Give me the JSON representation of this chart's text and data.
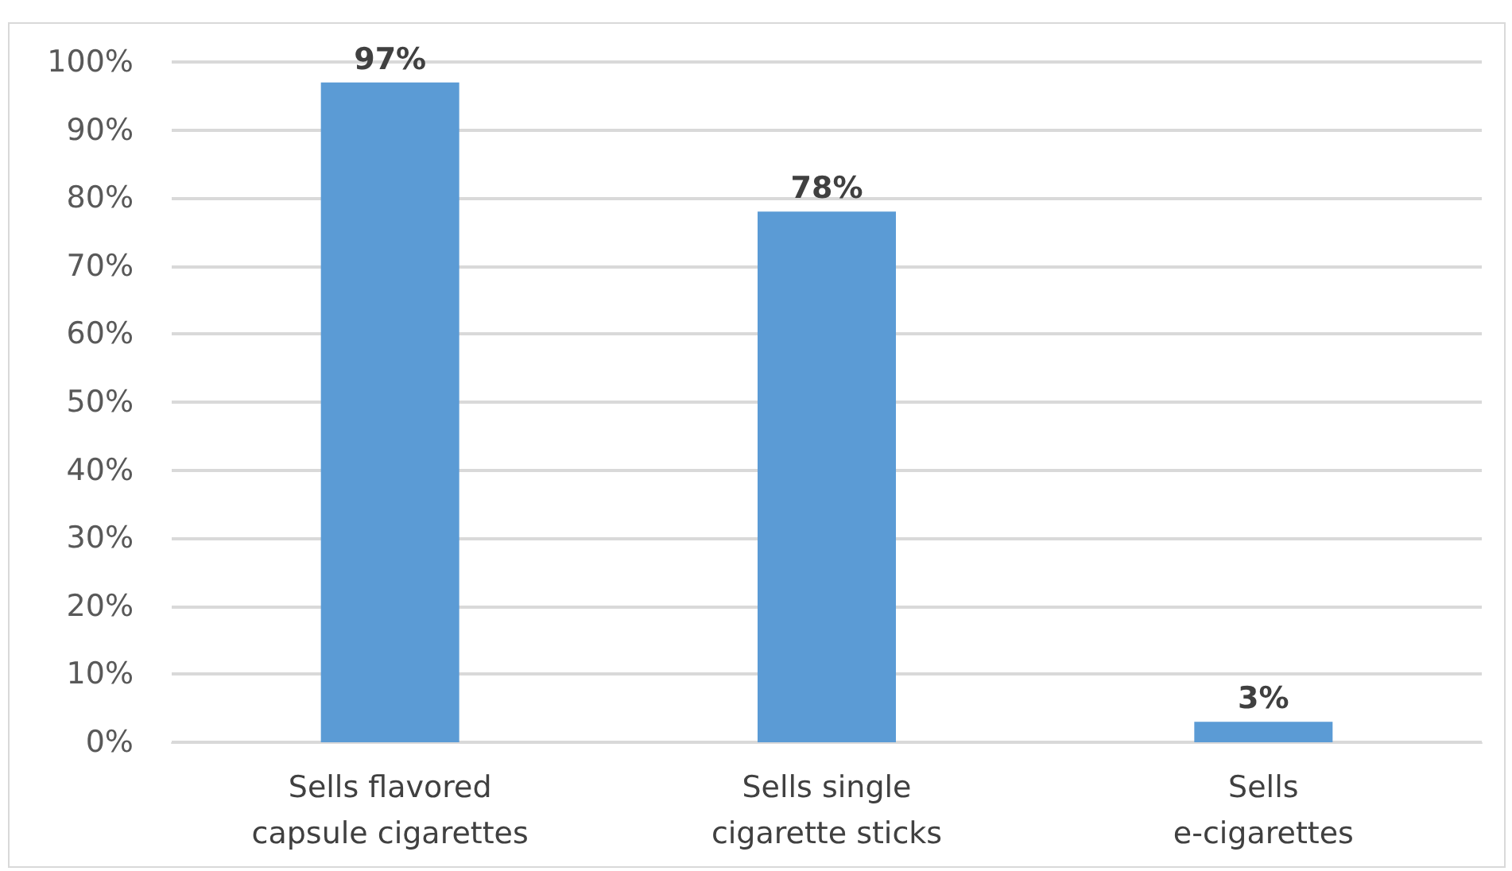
{
  "chart_data": {
    "type": "bar",
    "categories": [
      "Sells flavored\ncapsule cigarettes",
      "Sells single\ncigarette sticks",
      "Sells\ne-cigarettes"
    ],
    "values": [
      97,
      78,
      3
    ],
    "color": "#5b9bd5",
    "value_labels": [
      "97%",
      "78%",
      "3%"
    ],
    "ylim": [
      0,
      100
    ],
    "yticks": [
      {
        "value": 0,
        "label": "0%"
      },
      {
        "value": 10,
        "label": "10%"
      },
      {
        "value": 20,
        "label": "20%"
      },
      {
        "value": 30,
        "label": "30%"
      },
      {
        "value": 40,
        "label": "40%"
      },
      {
        "value": 50,
        "label": "50%"
      },
      {
        "value": 60,
        "label": "60%"
      },
      {
        "value": 70,
        "label": "70%"
      },
      {
        "value": 80,
        "label": "80%"
      },
      {
        "value": 90,
        "label": "90%"
      },
      {
        "value": 100,
        "label": "100%"
      }
    ],
    "grid": "y"
  }
}
